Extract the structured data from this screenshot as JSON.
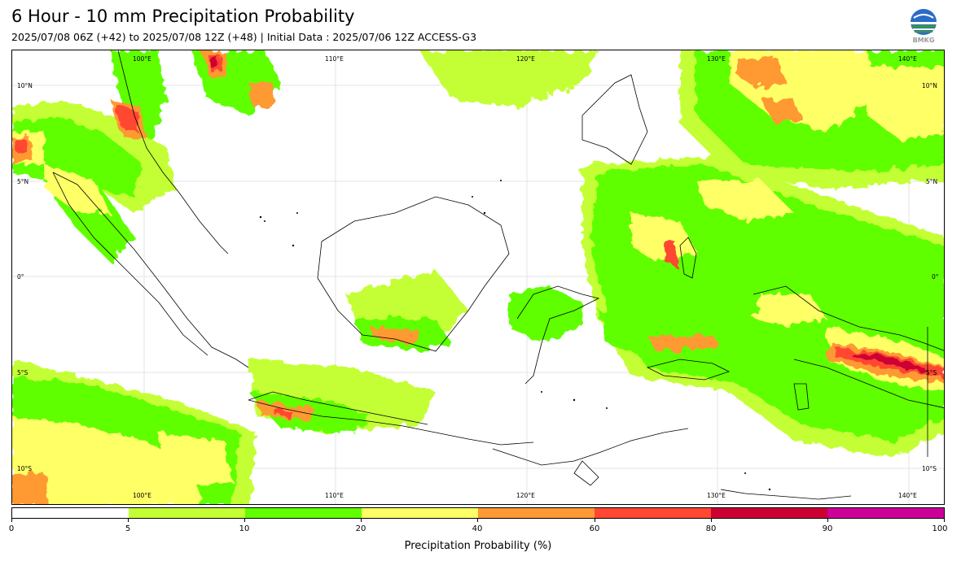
{
  "header": {
    "title": "6 Hour - 10 mm Precipitation Probability",
    "subtitle": "2025/07/08 06Z (+42) to 2025/07/08 12Z (+48) | Initial Data : 2025/07/06 12Z ACCESS-G3",
    "logo_text": "BMKG"
  },
  "map": {
    "lon_labels": [
      "100°E",
      "110°E",
      "120°E",
      "130°E",
      "140°E"
    ],
    "lat_labels": [
      "10°N",
      "5°N",
      "0°",
      "5°S",
      "10°S"
    ]
  },
  "colorbar": {
    "title": "Precipitation Probability (%)",
    "ticks": [
      "0",
      "5",
      "10",
      "20",
      "40",
      "60",
      "80",
      "90",
      "100"
    ],
    "colors": [
      "#ffffff",
      "#c4ff36",
      "#60ff00",
      "#ffff66",
      "#ff9933",
      "#ff4733",
      "#cc0033",
      "#cc0099"
    ]
  }
}
